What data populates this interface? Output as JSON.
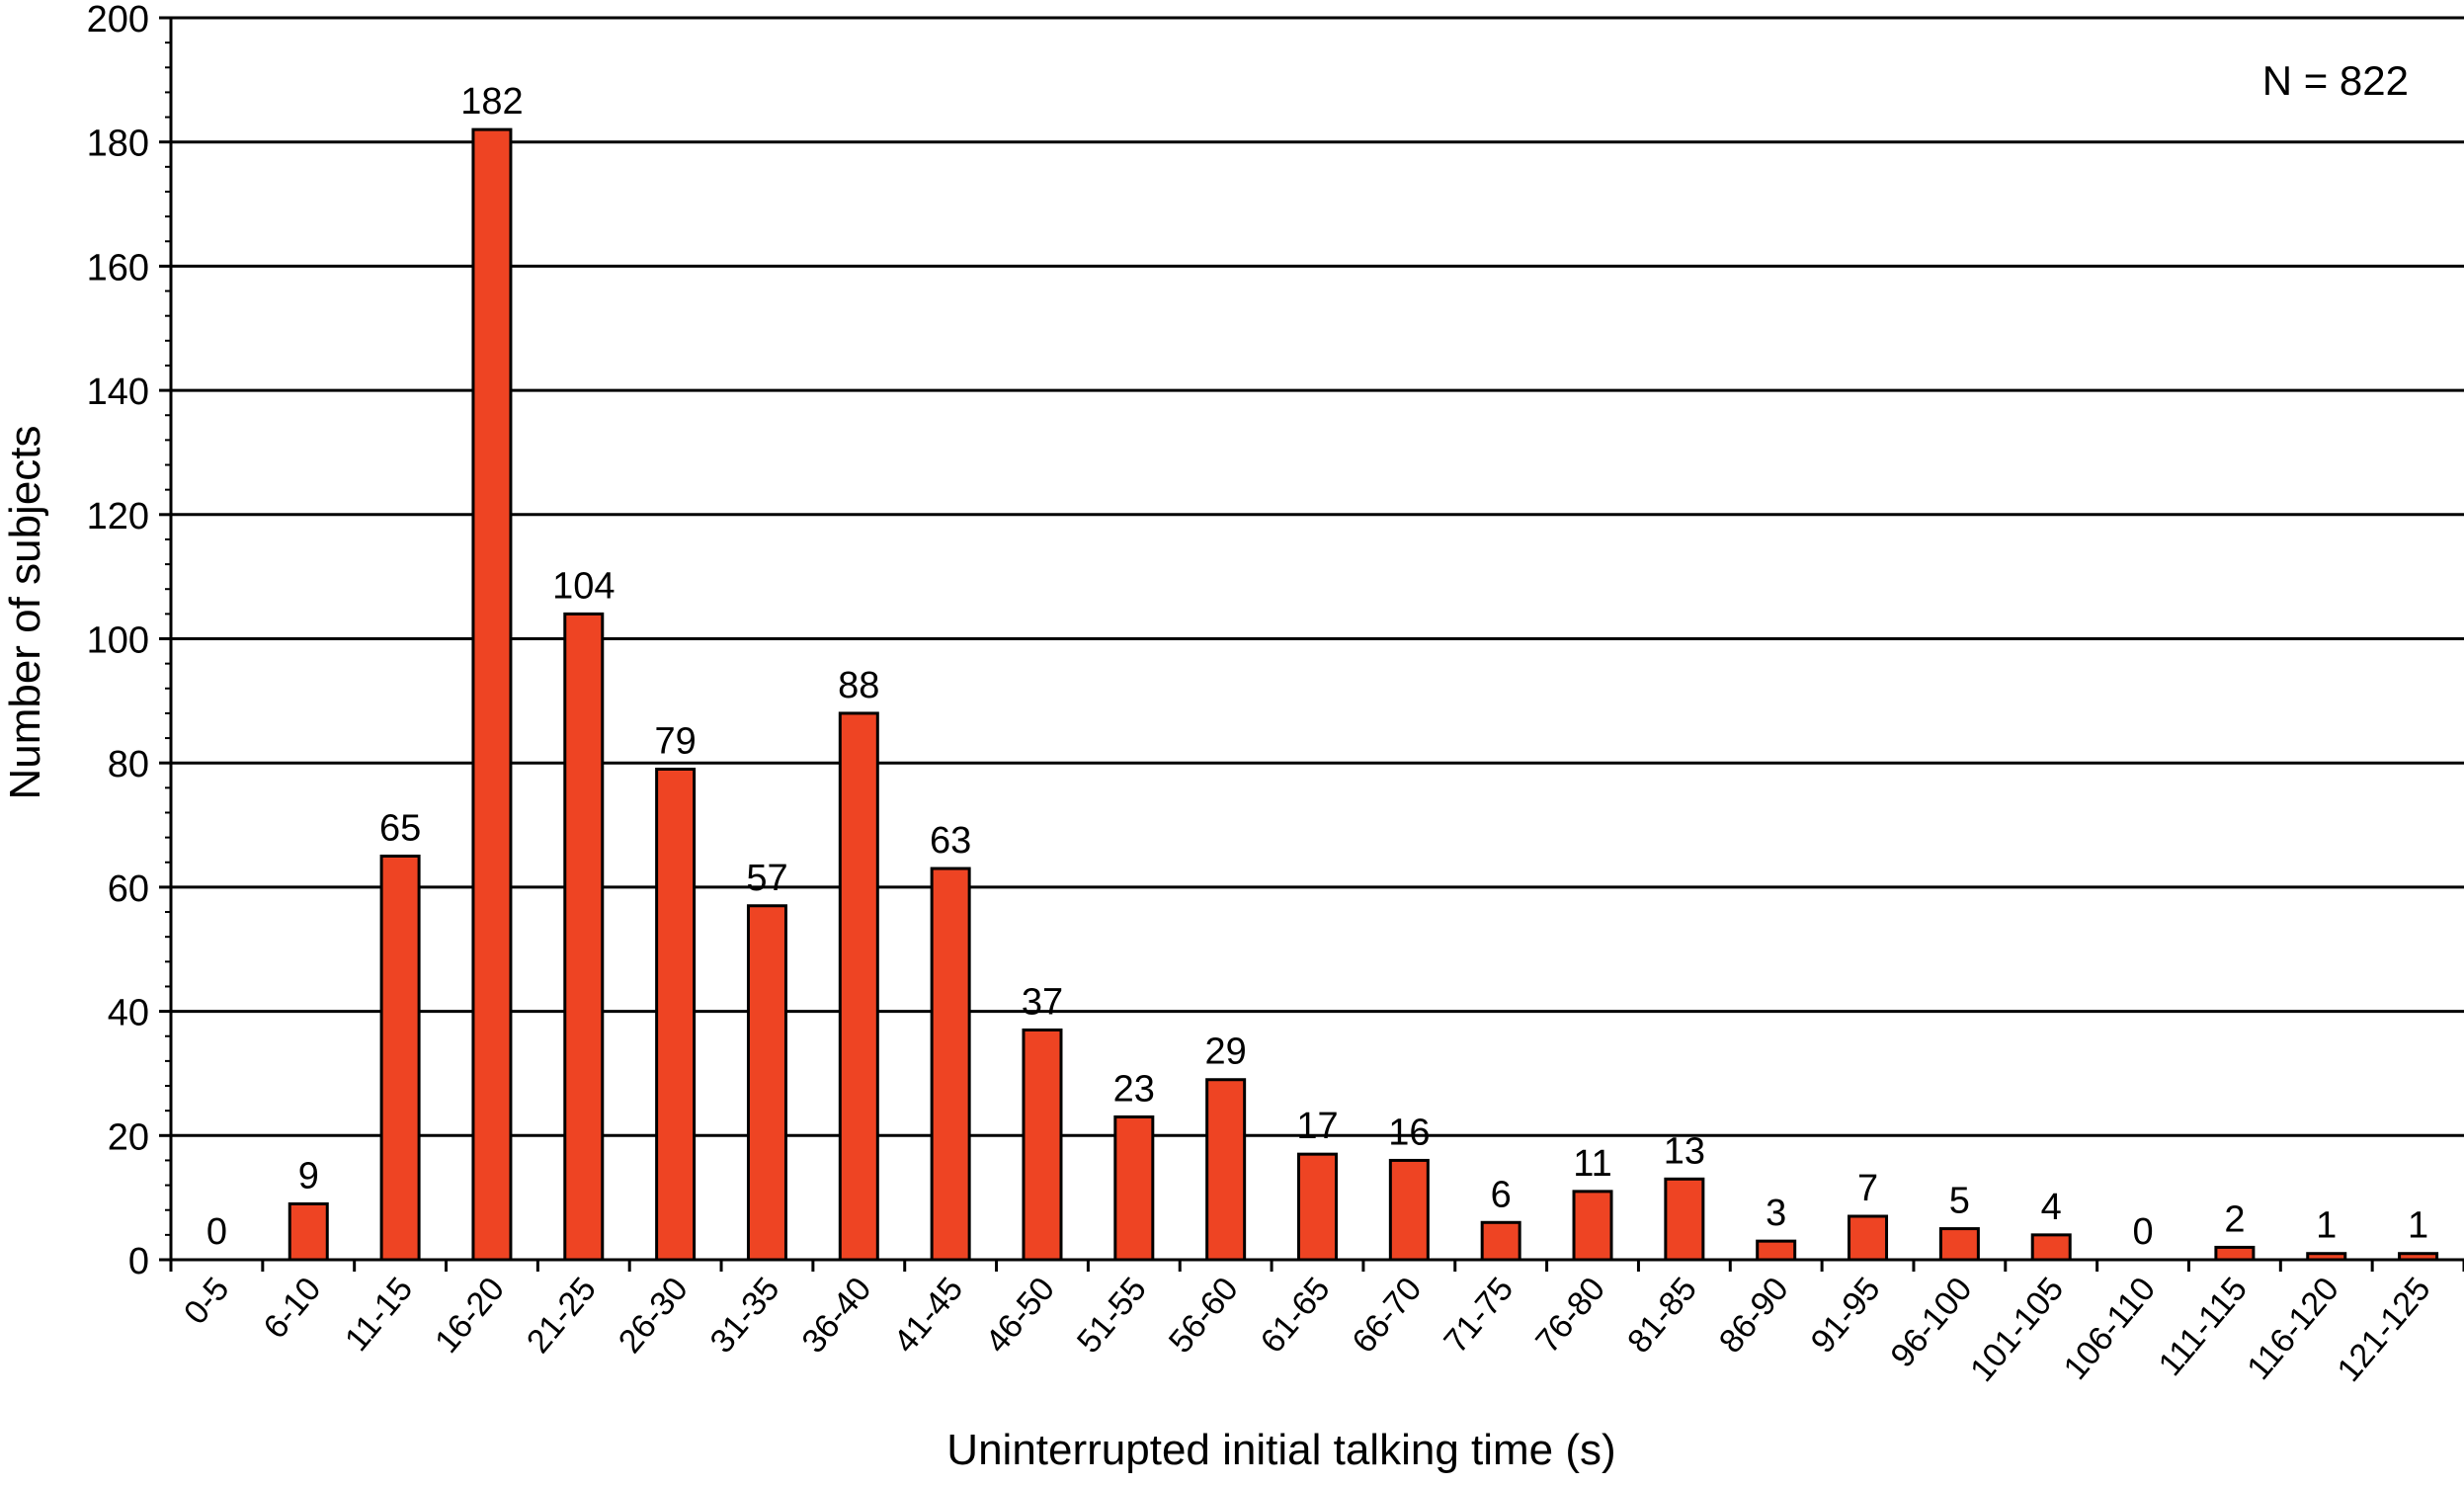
{
  "chart_data": {
    "type": "bar",
    "title": "",
    "annotation": "N = 822",
    "xlabel": "Uninterrupted initial talking time (s)",
    "ylabel": "Number of subjects",
    "ylim": [
      0,
      200
    ],
    "yticks": [
      0,
      20,
      40,
      60,
      80,
      100,
      120,
      140,
      160,
      180,
      200
    ],
    "grid": true,
    "categories": [
      "0-5",
      "6-10",
      "11-15",
      "16-20",
      "21-25",
      "26-30",
      "31-35",
      "36-40",
      "41-45",
      "46-50",
      "51-55",
      "56-60",
      "61-65",
      "66-70",
      "71-75",
      "76-80",
      "81-85",
      "86-90",
      "91-95",
      "96-100",
      "101-105",
      "106-110",
      "111-115",
      "116-120",
      "121-125"
    ],
    "values": [
      0,
      9,
      65,
      182,
      104,
      79,
      57,
      88,
      63,
      37,
      23,
      29,
      17,
      16,
      6,
      11,
      13,
      3,
      7,
      5,
      4,
      0,
      2,
      1,
      1
    ],
    "data_labels": [
      "0",
      "9",
      "65",
      "182",
      "104",
      "79",
      "57",
      "88",
      "63",
      "37",
      "23",
      "29",
      "17",
      "16",
      "6",
      "11",
      "13",
      "3",
      "7",
      "5",
      "4",
      "0",
      "2",
      "1",
      "1"
    ],
    "colors": {
      "bar_fill": "#EE4423",
      "bar_stroke": "#000000",
      "grid": "#000000",
      "axis": "#000000"
    }
  }
}
